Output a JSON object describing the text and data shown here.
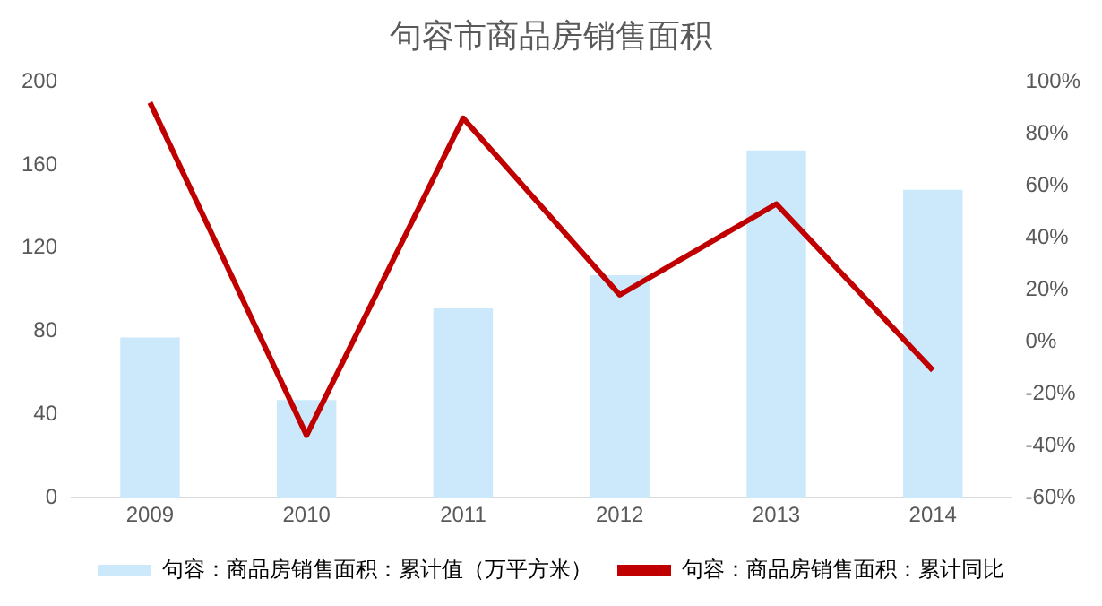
{
  "chart_data": {
    "type": "bar",
    "title": "句容市商品房销售面积",
    "categories": [
      "2009",
      "2010",
      "2011",
      "2012",
      "2013",
      "2014"
    ],
    "series": [
      {
        "name": "句容：商品房销售面积：累计值（万平方米）",
        "color": "#cce9fb",
        "values": [
          77,
          47,
          91,
          107,
          167,
          148
        ]
      },
      {
        "name": "句容：商品房销售面积：累计同比",
        "type": "line",
        "axis": "y2",
        "color": "#c00000",
        "values": [
          92,
          -36,
          86,
          18,
          53,
          -11
        ]
      }
    ],
    "ylim": [
      0,
      200
    ],
    "yticks": [
      0,
      40,
      80,
      120,
      160,
      200
    ],
    "y2lim": [
      -60,
      100
    ],
    "y2ticks": [
      {
        "value": -60,
        "label": "-60%"
      },
      {
        "value": -40,
        "label": "-40%"
      },
      {
        "value": -20,
        "label": "-20%"
      },
      {
        "value": 0,
        "label": "0%"
      },
      {
        "value": 20,
        "label": "20%"
      },
      {
        "value": 40,
        "label": "40%"
      },
      {
        "value": 60,
        "label": "60%"
      },
      {
        "value": 80,
        "label": "80%"
      },
      {
        "value": 100,
        "label": "100%"
      }
    ],
    "grid": false,
    "legend": "bottom",
    "marker": "none"
  }
}
